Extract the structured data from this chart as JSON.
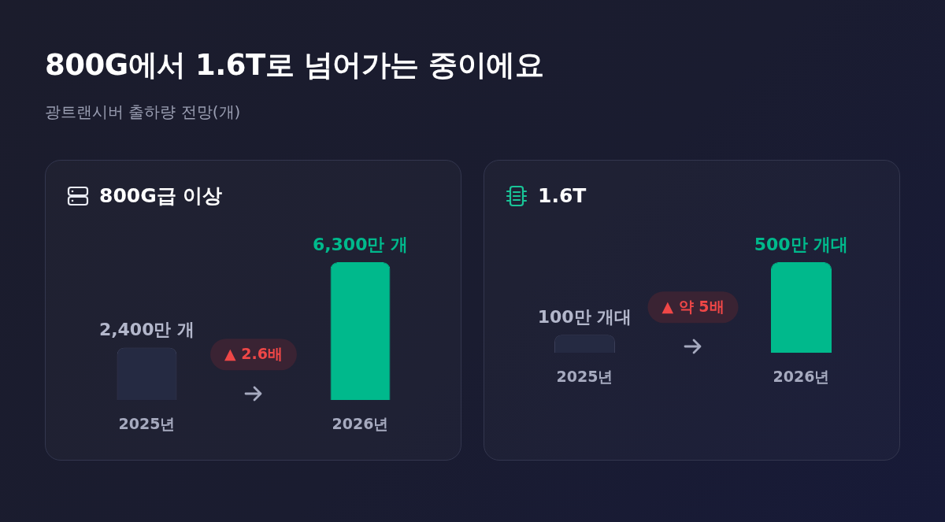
{
  "chart_data": [
    {
      "type": "other",
      "title": "800G에서 1.6T로 넘어가는 중이에요",
      "subtitle": "광트랜시버 출하량 전망(개)"
    },
    {
      "type": "bar",
      "title": "800G급 이상",
      "categories": [
        "2025년",
        "2026년"
      ],
      "values": [
        2400,
        6300
      ],
      "colors": [
        "#252a42",
        "#00b98c"
      ],
      "value_labels": [
        "2,400만 개",
        "6,300만 개"
      ],
      "annotations": [
        "▲ 2.6배"
      ]
    },
    {
      "type": "bar",
      "title": "1.6T",
      "categories": [
        "2025년",
        "2026년"
      ],
      "values": [
        100,
        500
      ],
      "colors": [
        "#252a42",
        "#00b98c"
      ],
      "value_labels": [
        "100만 개대",
        "500만 개대"
      ],
      "annotations": [
        "▲ 약 5배"
      ]
    }
  ]
}
